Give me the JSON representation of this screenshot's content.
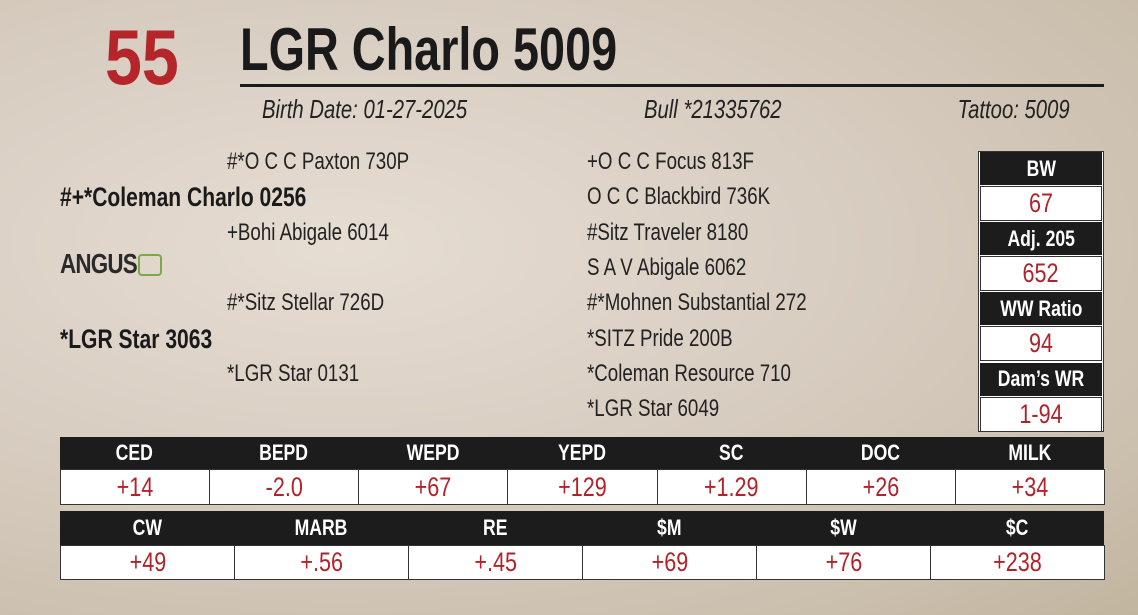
{
  "lot": "55",
  "name": "LGR Charlo 5009",
  "birth_date": "Birth Date: 01-27-2025",
  "registration": "Bull *21335762",
  "tattoo": "Tattoo: 5009",
  "pedigree": {
    "sire": "#+*Coleman Charlo 0256",
    "sire_sire": "#*O C C Paxton 730P",
    "sire_dam": "+Bohi Abigale 6014",
    "dam": "*LGR Star 3063",
    "dam_sire": "#*Sitz Stellar 726D",
    "dam_dam": "*LGR Star 0131",
    "great_grandparents": [
      "+O C C Focus 813F",
      "O C C Blackbird 736K",
      "#Sitz Traveler 8180",
      "S A V Abigale 6062",
      "#*Mohnen Substantial 272",
      "*SITZ Pride 200B",
      "*Coleman Resource 710",
      "*LGR Star 6049"
    ]
  },
  "logo": "ANGUS",
  "performance": [
    {
      "label": "BW",
      "value": "67"
    },
    {
      "label": "Adj. 205",
      "value": "652"
    },
    {
      "label": "WW Ratio",
      "value": "94"
    },
    {
      "label": "Dam’s WR",
      "value": "1-94"
    }
  ],
  "epd_table_1": {
    "headers": [
      "CED",
      "BEPD",
      "WEPD",
      "YEPD",
      "SC",
      "DOC",
      "MILK"
    ],
    "values": [
      "+14",
      "-2.0",
      "+67",
      "+129",
      "+1.29",
      "+26",
      "+34"
    ]
  },
  "epd_table_2": {
    "headers": [
      "CW",
      "MARB",
      "RE",
      "$M",
      "$W",
      "$C"
    ],
    "values": [
      "+49",
      "+.56",
      "+.45",
      "+69",
      "+76",
      "+238"
    ]
  }
}
